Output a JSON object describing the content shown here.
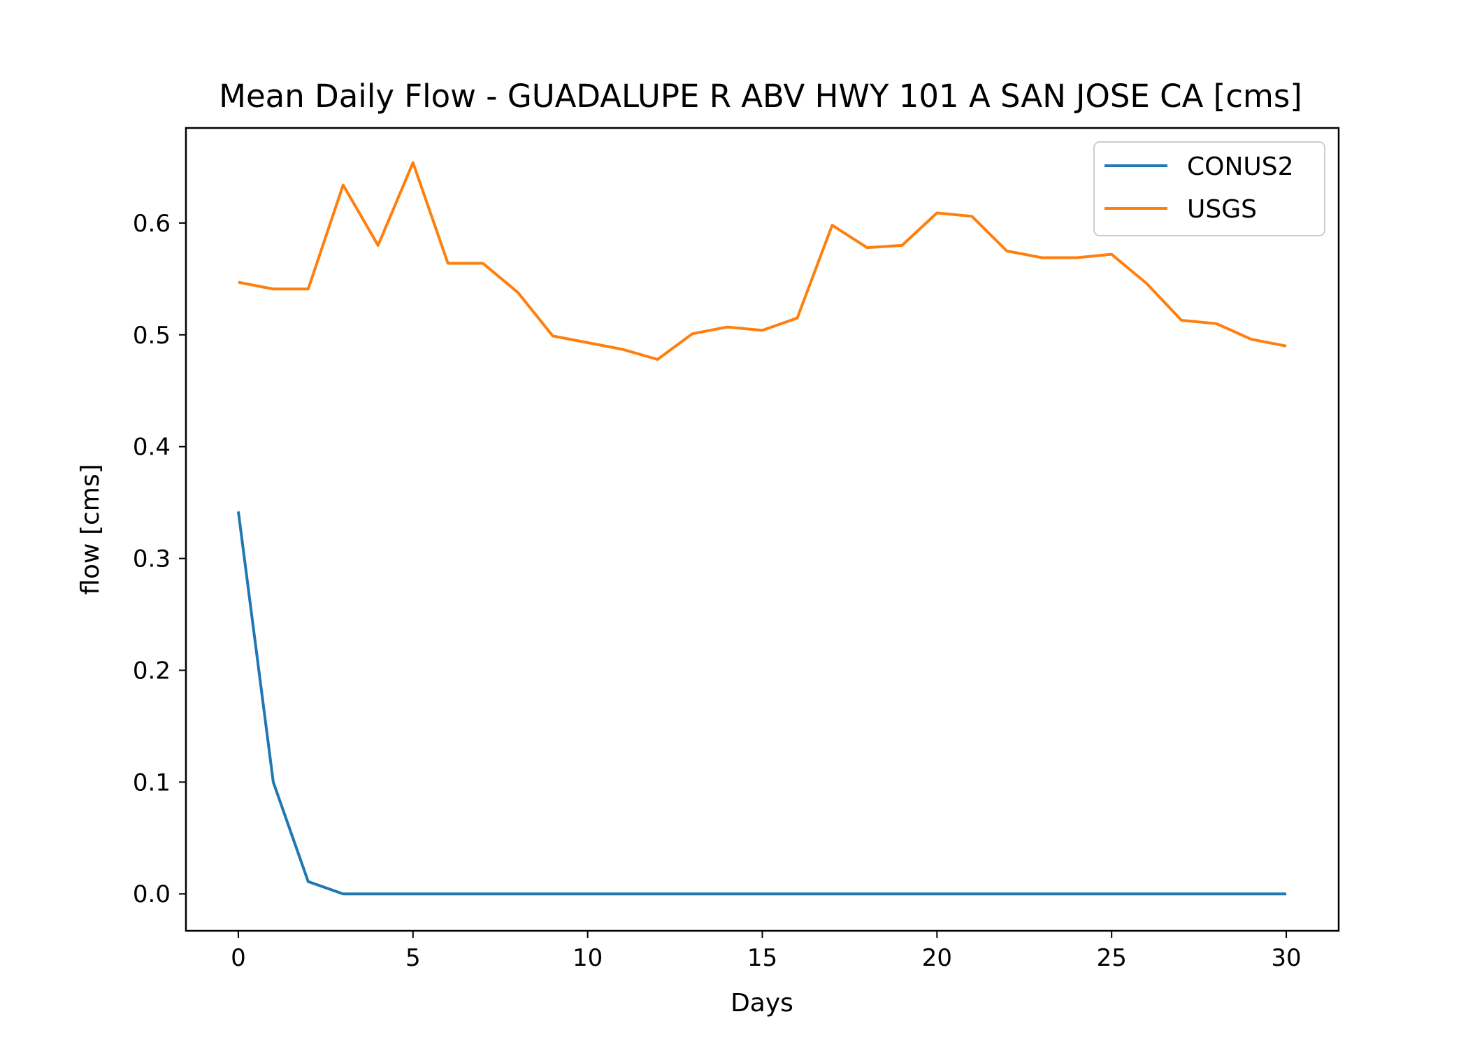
{
  "chart_data": {
    "type": "line",
    "title": "Mean Daily Flow - GUADALUPE R ABV HWY 101 A SAN JOSE CA [cms]",
    "xlabel": "Days",
    "ylabel": "flow [cms]",
    "xlim": [
      -1.5,
      31.5
    ],
    "ylim": [
      -0.033,
      0.685
    ],
    "xticks": [
      0,
      5,
      10,
      15,
      20,
      25,
      30
    ],
    "yticks": [
      0.0,
      0.1,
      0.2,
      0.3,
      0.4,
      0.5,
      0.6
    ],
    "ytick_labels": [
      "0.0",
      "0.1",
      "0.2",
      "0.3",
      "0.4",
      "0.5",
      "0.6"
    ],
    "grid": false,
    "legend_position": "top-right",
    "x": [
      0,
      1,
      2,
      3,
      4,
      5,
      6,
      7,
      8,
      9,
      10,
      11,
      12,
      13,
      14,
      15,
      16,
      17,
      18,
      19,
      20,
      21,
      22,
      23,
      24,
      25,
      26,
      27,
      28,
      29,
      30
    ],
    "series": [
      {
        "name": "CONUS2",
        "color": "#1f77b4",
        "values": [
          0.342,
          0.1,
          0.011,
          0,
          0,
          0,
          0,
          0,
          0,
          0,
          0,
          0,
          0,
          0,
          0,
          0,
          0,
          0,
          0,
          0,
          0,
          0,
          0,
          0,
          0,
          0,
          0,
          0,
          0,
          0,
          0
        ]
      },
      {
        "name": "USGS",
        "color": "#ff7f0e",
        "values": [
          0.547,
          0.541,
          0.541,
          0.634,
          0.58,
          0.654,
          0.564,
          0.564,
          0.538,
          0.499,
          0.493,
          0.487,
          0.478,
          0.501,
          0.507,
          0.504,
          0.515,
          0.598,
          0.578,
          0.58,
          0.609,
          0.606,
          0.575,
          0.569,
          0.569,
          0.572,
          0.546,
          0.513,
          0.51,
          0.496,
          0.49
        ]
      }
    ]
  }
}
